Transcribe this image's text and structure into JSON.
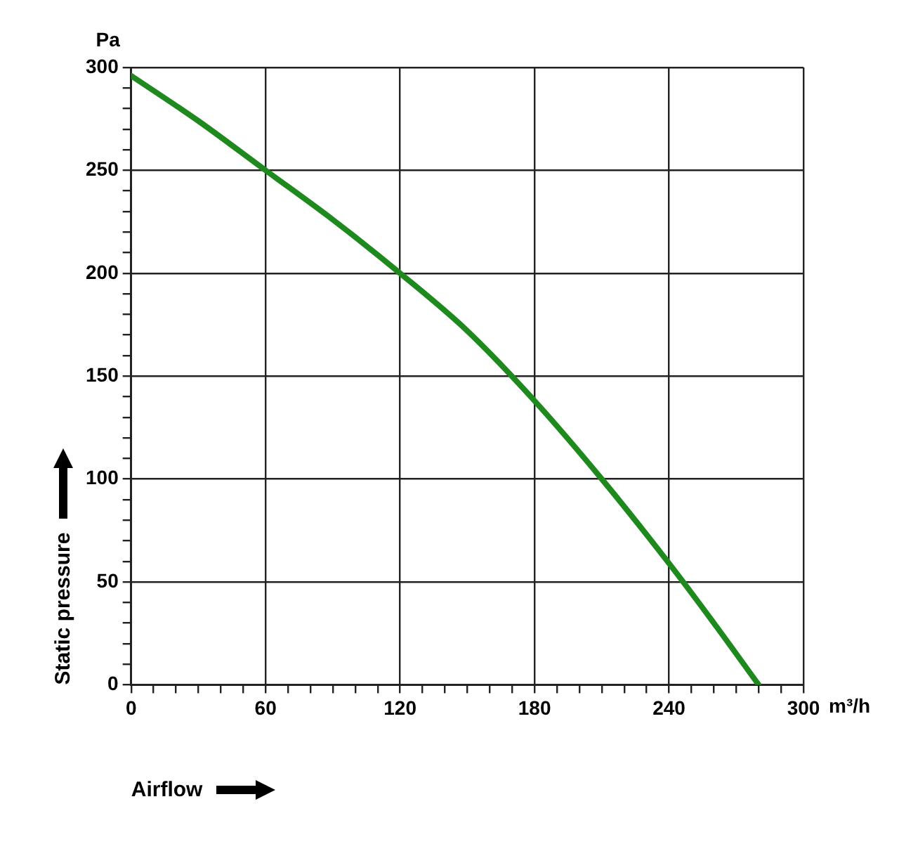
{
  "chart_data": {
    "type": "line",
    "xlabel": "Airflow",
    "ylabel": "Static pressure",
    "annotations": [
      "Pa",
      "m³/h"
    ],
    "series": [
      {
        "color": "#1e8a1e",
        "x": [
          0,
          30,
          60,
          90,
          120,
          150,
          180,
          210,
          240,
          260,
          280
        ],
        "values": [
          296,
          274,
          250,
          226,
          200,
          172,
          138,
          100,
          59,
          30,
          0
        ]
      }
    ],
    "xlim": [
      0,
      300
    ],
    "ylim": [
      0,
      300
    ],
    "xticks": [
      0,
      {
        "value": 10,
        "label": null
      },
      {
        "value": 20,
        "label": null
      },
      {
        "value": 30,
        "label": null
      },
      {
        "value": 40,
        "label": null
      },
      {
        "value": 50,
        "label": null
      },
      60,
      {
        "value": 70,
        "label": null
      },
      {
        "value": 80,
        "label": null
      },
      {
        "value": 90,
        "label": null
      },
      {
        "value": 100,
        "label": null
      },
      {
        "value": 110,
        "label": null
      },
      120,
      {
        "value": 130,
        "label": null
      },
      {
        "value": 140,
        "label": null
      },
      {
        "value": 150,
        "label": null
      },
      {
        "value": 160,
        "label": null
      },
      {
        "value": 170,
        "label": null
      },
      180,
      {
        "value": 190,
        "label": null
      },
      {
        "value": 200,
        "label": null
      },
      {
        "value": 210,
        "label": null
      },
      {
        "value": 220,
        "label": null
      },
      {
        "value": 230,
        "label": null
      },
      240,
      {
        "value": 250,
        "label": null
      },
      {
        "value": 260,
        "label": null
      },
      {
        "value": 270,
        "label": null
      },
      {
        "value": 280,
        "label": null
      },
      {
        "value": 290,
        "label": null
      },
      300
    ],
    "yticks": [
      0,
      {
        "value": 10,
        "label": null
      },
      {
        "value": 20,
        "label": null
      },
      {
        "value": 30,
        "label": null
      },
      {
        "value": 40,
        "label": null
      },
      50,
      {
        "value": 60,
        "label": null
      },
      {
        "value": 70,
        "label": null
      },
      {
        "value": 80,
        "label": null
      },
      {
        "value": 90,
        "label": null
      },
      100,
      {
        "value": 110,
        "label": null
      },
      {
        "value": 120,
        "label": null
      },
      {
        "value": 130,
        "label": null
      },
      {
        "value": 140,
        "label": null
      },
      150,
      {
        "value": 160,
        "label": null
      },
      {
        "value": 170,
        "label": null
      },
      {
        "value": 180,
        "label": null
      },
      {
        "value": 190,
        "label": null
      },
      200,
      {
        "value": 210,
        "label": null
      },
      {
        "value": 220,
        "label": null
      },
      {
        "value": 230,
        "label": null
      },
      {
        "value": 240,
        "label": null
      },
      250,
      {
        "value": 260,
        "label": null
      },
      {
        "value": 270,
        "label": null
      },
      {
        "value": 280,
        "label": null
      },
      {
        "value": 290,
        "label": null
      },
      300
    ],
    "grid": true,
    "legend": false,
    "marker": "none",
    "line_style": "solid"
  }
}
